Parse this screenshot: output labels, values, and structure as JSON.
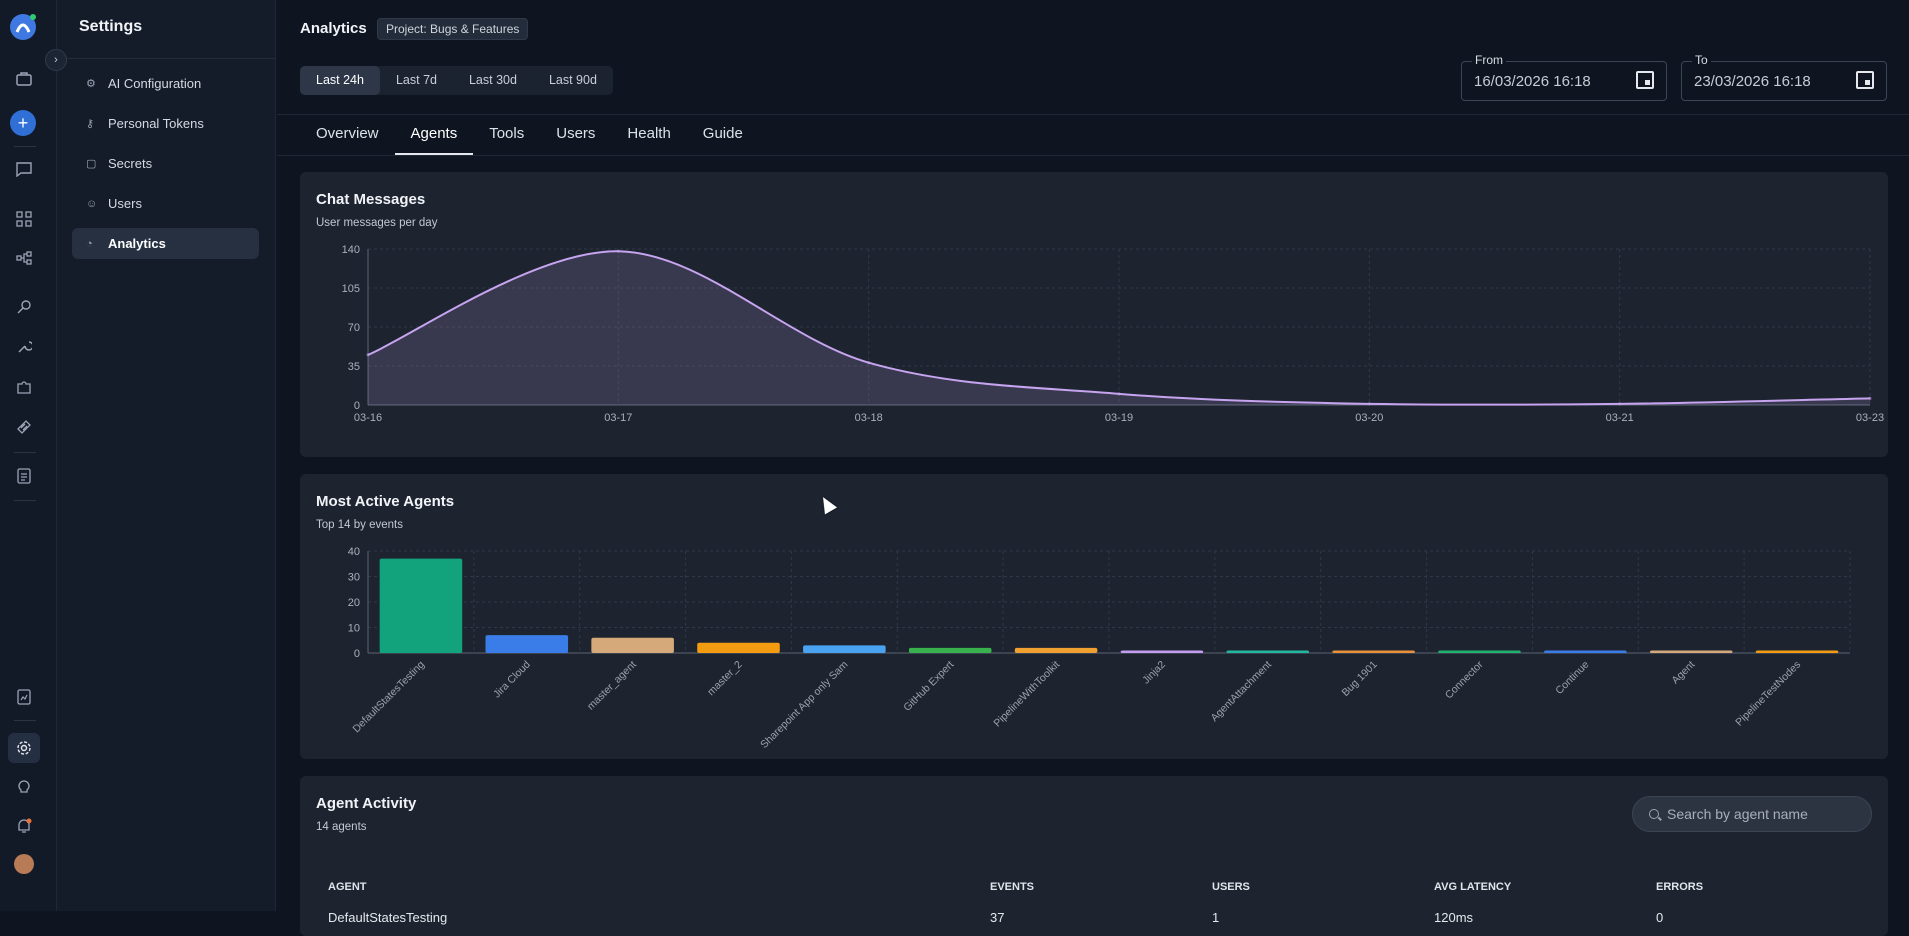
{
  "rail": {
    "icons": [
      "app-logo-icon",
      "briefcase-icon",
      "add-icon",
      "chat-icon",
      "grid-icon",
      "flow-icon",
      "key-icon",
      "wrench-icon",
      "puzzle-icon",
      "tape-icon",
      "document-icon",
      "report-icon",
      "settings-icon",
      "bulb-icon",
      "bell-icon",
      "user-avatar"
    ],
    "expand_glyph": "›"
  },
  "sidebar": {
    "title": "Settings",
    "items": [
      {
        "label": "AI Configuration",
        "icon": "gear-icon",
        "active": false
      },
      {
        "label": "Personal Tokens",
        "icon": "key-icon",
        "active": false
      },
      {
        "label": "Secrets",
        "icon": "lock-icon",
        "active": false
      },
      {
        "label": "Users",
        "icon": "users-icon",
        "active": false
      },
      {
        "label": "Analytics",
        "icon": "analytics-icon",
        "active": true
      }
    ]
  },
  "header": {
    "title": "Analytics",
    "project_badge": "Project: Bugs & Features",
    "ranges": [
      "Last 24h",
      "Last 7d",
      "Last 30d",
      "Last 90d"
    ],
    "active_range": "Last 24h",
    "from_label": "From",
    "from_value": "16/03/2026 16:18",
    "to_label": "To",
    "to_value": "23/03/2026 16:18"
  },
  "tabs": [
    "Overview",
    "Agents",
    "Tools",
    "Users",
    "Health",
    "Guide"
  ],
  "active_tab": "Agents",
  "chat_card": {
    "title": "Chat Messages",
    "subtitle": "User messages per day"
  },
  "agents_card": {
    "title": "Most Active Agents",
    "subtitle": "Top 14 by events"
  },
  "activity_card": {
    "title": "Agent Activity",
    "subtitle": "14 agents",
    "search_placeholder": "Search by agent name",
    "columns": [
      "AGENT",
      "EVENTS",
      "USERS",
      "AVG LATENCY",
      "ERRORS"
    ],
    "rows": [
      [
        "DefaultStatesTesting",
        "37",
        "1",
        "120ms",
        "0"
      ]
    ]
  },
  "chart_data": [
    {
      "type": "area",
      "title": "Chat Messages",
      "subtitle": "User messages per day",
      "x": [
        "03-16",
        "03-17",
        "03-18",
        "03-19",
        "03-20",
        "03-21",
        "03-23"
      ],
      "series": [
        {
          "values": [
            45,
            138,
            38,
            10,
            1,
            1,
            6
          ]
        }
      ],
      "ylim": [
        0,
        140
      ],
      "yticks": [
        0,
        35,
        70,
        105,
        140
      ],
      "grid": true,
      "color": "#c7a4ef"
    },
    {
      "type": "bar",
      "title": "Most Active Agents",
      "subtitle": "Top 14 by events",
      "categories": [
        "DefaultStatesTesting",
        "Jira Cloud",
        "master_agent",
        "master_2",
        "Sharepoint App only Sam",
        "GitHub Expert",
        "PipelineWithToolkit",
        "Jinja2",
        "AgentAttachment",
        "Bug 1901",
        "Connector",
        "Continue",
        "Agent",
        "PipelineTestNodes"
      ],
      "values": [
        37,
        7,
        6,
        4,
        3,
        2,
        2,
        1,
        1,
        1,
        1,
        1,
        1,
        1
      ],
      "colors": [
        "#12a37c",
        "#3b7de8",
        "#d6a97a",
        "#f39c12",
        "#4aa3f0",
        "#37b24d",
        "#f0a030",
        "#c59df0",
        "#22b8a0",
        "#e8903a",
        "#20b070",
        "#3b7de8",
        "#d6a97a",
        "#f39c12"
      ],
      "ylim": [
        0,
        40
      ],
      "yticks": [
        0,
        10,
        20,
        30,
        40
      ],
      "grid": true
    }
  ]
}
